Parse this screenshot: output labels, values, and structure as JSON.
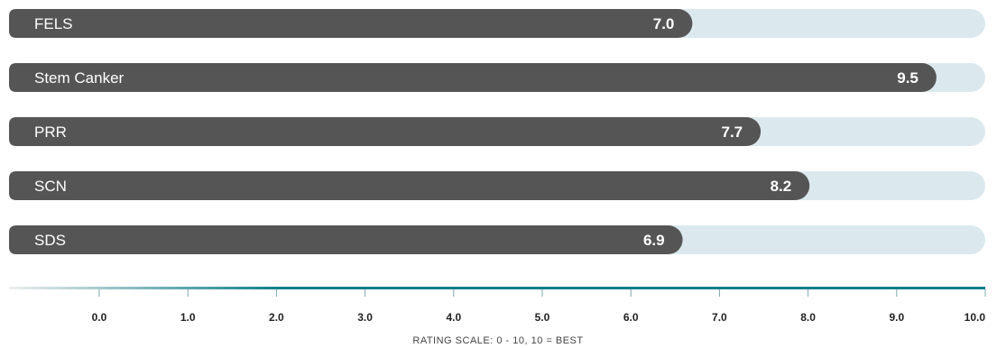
{
  "chart_data": {
    "type": "bar",
    "orientation": "horizontal",
    "categories": [
      "FELS",
      "Stem Canker",
      "PRR",
      "SCN",
      "SDS"
    ],
    "values": [
      7.0,
      9.5,
      7.7,
      8.2,
      6.9
    ],
    "value_labels": [
      "7.0",
      "9.5",
      "7.7",
      "8.2",
      "6.9"
    ],
    "xlim": [
      0,
      10
    ],
    "ticks": [
      "0.0",
      "1.0",
      "2.0",
      "3.0",
      "4.0",
      "5.0",
      "6.0",
      "7.0",
      "8.0",
      "9.0",
      "10.0"
    ],
    "xlabel": "RATING SCALE: 0 - 10, 10 = BEST",
    "grid": false,
    "colors": {
      "bar": "#555555",
      "track": "#dbe9ef",
      "axis_start": "#eeeeee",
      "axis_end": "#0d7f8a"
    }
  }
}
